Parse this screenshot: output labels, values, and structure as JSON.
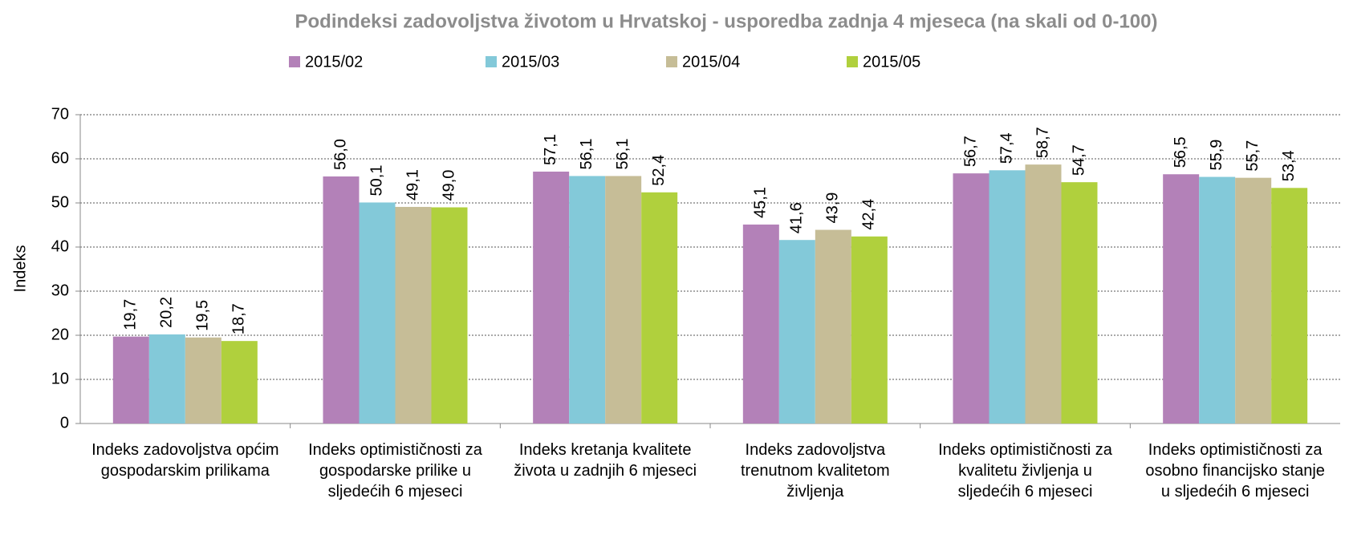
{
  "chart_data": {
    "type": "bar",
    "title": "Podindeksi zadovoljstva životom u Hrvatskoj  - usporedba zadnja 4 mjeseca  (na skali od 0-100)",
    "ylabel": "Indeks",
    "categories": [
      "Indeks zadovoljstva općim gospodarskim prilikama",
      "Indeks optimističnosti za gospodarske prilike u sljedećih 6 mjeseci",
      "Indeks kretanja kvalitete života u zadnjih 6 mjeseci",
      "Indeks zadovoljstva trenutnom kvalitetom življenja",
      "Indeks optimističnosti za kvalitetu življenja u sljedećih 6 mjeseci",
      "Indeks optimističnosti za osobno financijsko stanje u sljedećih 6 mjeseci"
    ],
    "series": [
      {
        "name": "2015/02",
        "color": "#b381b8",
        "values": [
          19.7,
          56.0,
          57.1,
          45.1,
          56.7,
          56.5
        ],
        "value_labels": [
          "19,7",
          "56,0",
          "57,1",
          "45,1",
          "56,7",
          "56,5"
        ]
      },
      {
        "name": "2015/03",
        "color": "#83c9d9",
        "values": [
          20.2,
          50.1,
          56.1,
          41.6,
          57.4,
          55.9
        ],
        "value_labels": [
          "20,2",
          "50,1",
          "56,1",
          "41,6",
          "57,4",
          "55,9"
        ]
      },
      {
        "name": "2015/04",
        "color": "#c6bd97",
        "values": [
          19.5,
          49.1,
          56.1,
          43.9,
          58.7,
          55.7
        ],
        "value_labels": [
          "19,5",
          "49,1",
          "56,1",
          "43,9",
          "58,7",
          "55,7"
        ]
      },
      {
        "name": "2015/05",
        "color": "#b0d03d",
        "values": [
          18.7,
          49.0,
          52.4,
          42.4,
          54.7,
          53.4
        ],
        "value_labels": [
          "18,7",
          "49,0",
          "52,4",
          "42,4",
          "54,7",
          "53,4"
        ]
      }
    ],
    "ylim": [
      0,
      70
    ],
    "yticks": [
      0,
      10,
      20,
      30,
      40,
      50,
      60,
      70
    ],
    "grid": true,
    "legend": "top"
  }
}
